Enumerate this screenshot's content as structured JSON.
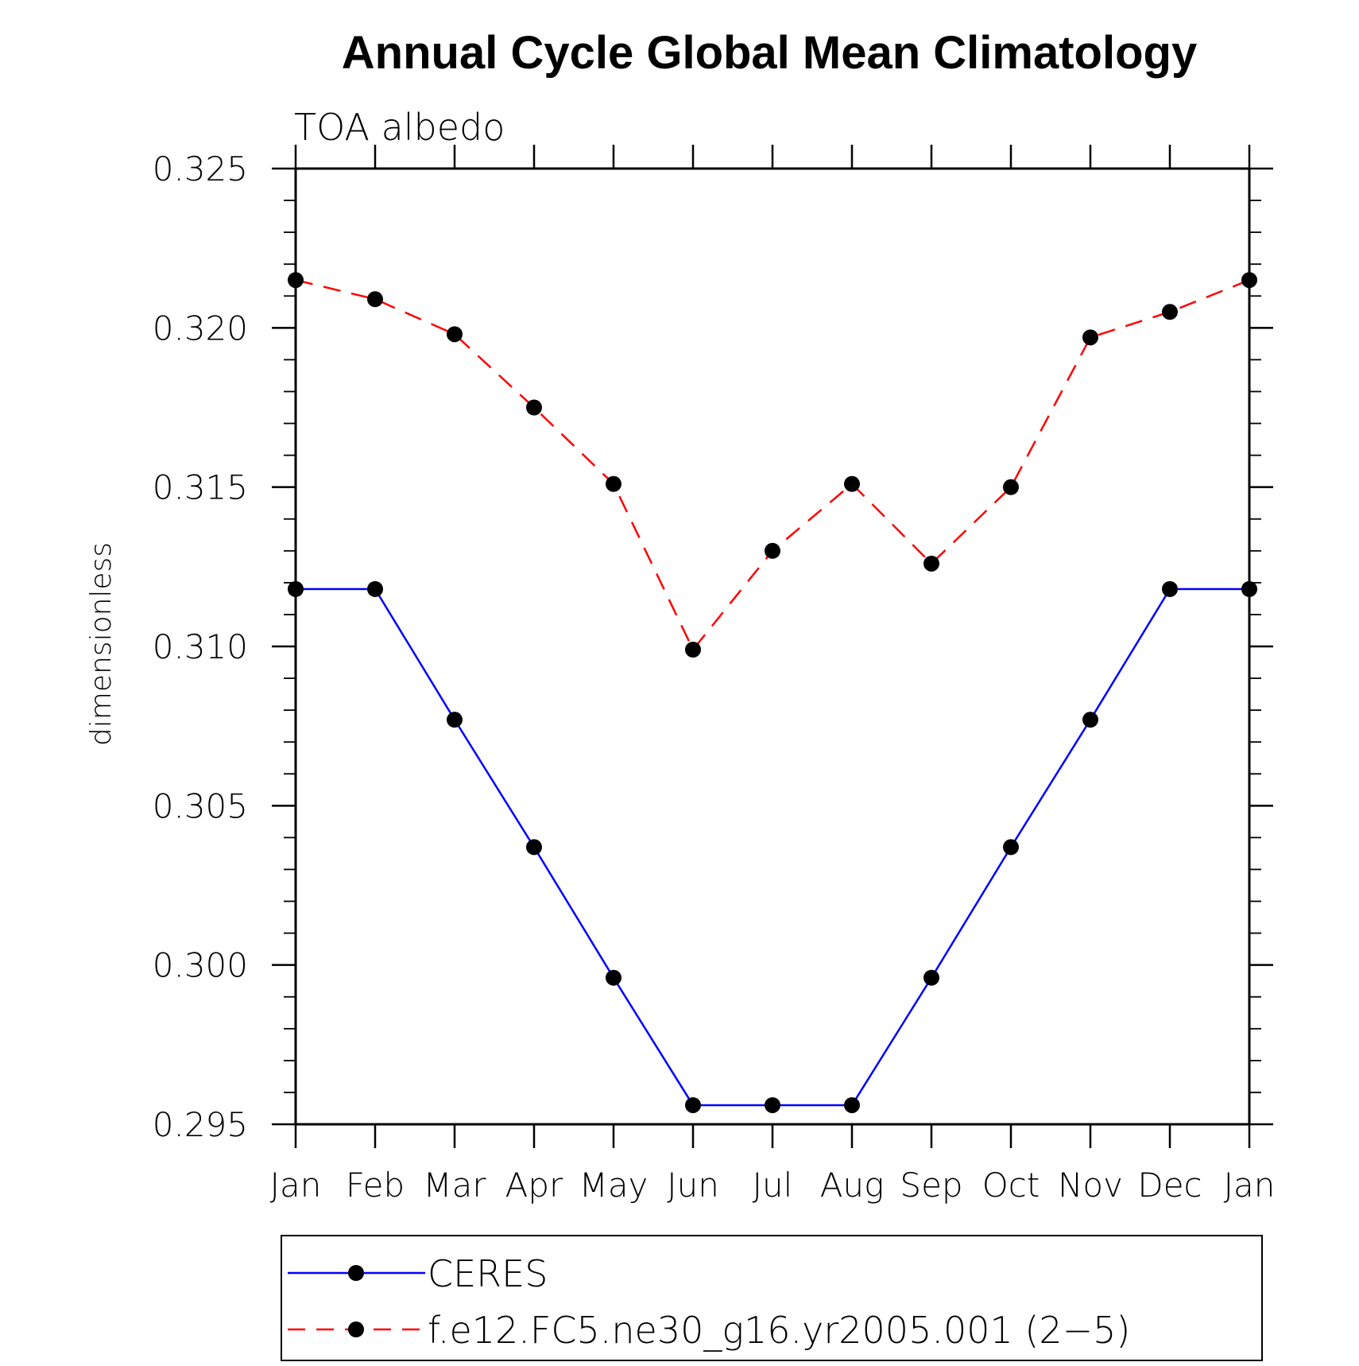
{
  "chart_data": {
    "type": "line",
    "title": "Annual Cycle Global Mean Climatology",
    "subtitle": "TOA albedo",
    "ylabel": "dimensionless",
    "xlabel": "",
    "categories": [
      "Jan",
      "Feb",
      "Mar",
      "Apr",
      "May",
      "Jun",
      "Jul",
      "Aug",
      "Sep",
      "Oct",
      "Nov",
      "Dec",
      "Jan"
    ],
    "ylim": [
      0.295,
      0.325
    ],
    "yticks": [
      "0.295",
      "0.300",
      "0.305",
      "0.310",
      "0.315",
      "0.320",
      "0.325"
    ],
    "legend_position": "bottom",
    "series": [
      {
        "name": "CERES",
        "color": "#0000ff",
        "dash": "solid",
        "marker": "circle",
        "values": [
          0.3118,
          0.3118,
          0.3077,
          0.3037,
          0.2996,
          0.2956,
          0.2956,
          0.2956,
          0.2996,
          0.3037,
          0.3077,
          0.3118,
          0.3118
        ]
      },
      {
        "name": "f.e12.FC5.ne30_g16.yr2005.001 (2−5)",
        "color": "#ff0000",
        "dash": "dashed",
        "marker": "circle",
        "values": [
          0.3215,
          0.3209,
          0.3198,
          0.3175,
          0.3151,
          0.3099,
          0.313,
          0.3151,
          0.3126,
          0.315,
          0.3197,
          0.3205,
          0.3215
        ]
      }
    ]
  }
}
